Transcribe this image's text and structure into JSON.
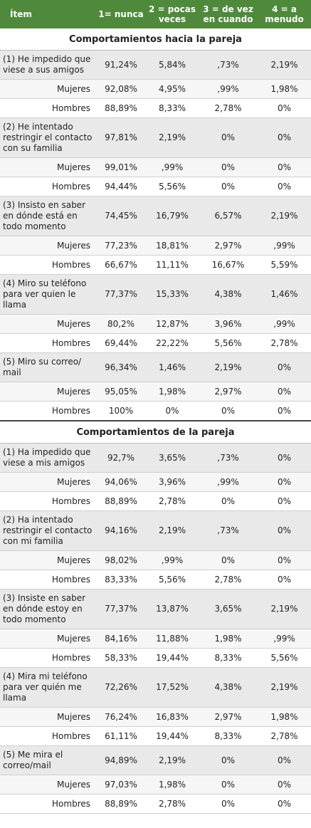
{
  "table": {
    "header": [
      "Ítem",
      "1= nunca",
      "2 = pocas veces",
      "3 = de vez en cuando",
      "4 = a menudo"
    ],
    "sections": [
      {
        "title": "Comportamientos hacia la pareja",
        "rows": [
          [
            "(1) He impedido que viese a sus amigos",
            "91,24%",
            "5,84%",
            ",73%",
            "2,19%"
          ],
          [
            "Mujeres",
            "92,08%",
            "4,95%",
            ",99%",
            "1,98%"
          ],
          [
            "Hombres",
            "88,89%",
            "8,33%",
            "2,78%",
            "0%"
          ],
          [
            "(2) He intentado restringir el contacto con su familia",
            "97,81%",
            "2,19%",
            "0%",
            "0%"
          ],
          [
            "Mujeres",
            "99,01%",
            ",99%",
            "0%",
            "0%"
          ],
          [
            "Hombres",
            "94,44%",
            "5,56%",
            "0%",
            "0%"
          ],
          [
            "(3) Insisto en saber en dónde está en todo momento",
            "74,45%",
            "16,79%",
            "6,57%",
            "2,19%"
          ],
          [
            "Mujeres",
            "77,23%",
            "18,81%",
            "2,97%",
            ",99%"
          ],
          [
            "Hombres",
            "66,67%",
            "11,11%",
            "16,67%",
            "5,59%"
          ],
          [
            "(4) Miro su teléfono para ver quien le llama",
            "77,37%",
            "15,33%",
            "4,38%",
            "1,46%"
          ],
          [
            "Mujeres",
            "80,2%",
            "12,87%",
            "3,96%",
            ",99%"
          ],
          [
            "Hombres",
            "69,44%",
            "22,22%",
            "5,56%",
            "2,78%"
          ],
          [
            "(5) Miro su correo/ mail",
            "96,34%",
            "1,46%",
            "2,19%",
            "0%"
          ],
          [
            "Mujeres",
            "95,05%",
            "1,98%",
            "2,97%",
            "0%"
          ],
          [
            "Hombres",
            "100%",
            "0%",
            "0%",
            "0%"
          ]
        ]
      },
      {
        "title": "Comportamientos de la pareja",
        "rows": [
          [
            "(1) Ha impedido que viese a mis amigos",
            "92,7%",
            "3,65%",
            ",73%",
            "0%"
          ],
          [
            "Mujeres",
            "94,06%",
            "3,96%",
            ",99%",
            "0%"
          ],
          [
            "Hombres",
            "88,89%",
            "2,78%",
            "0%",
            "0%"
          ],
          [
            "(2) Ha intentado restringir el contacto con mi familia",
            "94,16%",
            "2,19%",
            ",73%",
            "0%"
          ],
          [
            "Mujeres",
            "98,02%",
            ",99%",
            "0%",
            "0%"
          ],
          [
            "Hombres",
            "83,33%",
            "5,56%",
            "2,78%",
            "0%"
          ],
          [
            "(3) Insiste en saber en dónde estoy en todo momento",
            "77,37%",
            "13,87%",
            "3,65%",
            "2,19%"
          ],
          [
            "Mujeres",
            "84,16%",
            "11,88%",
            "1,98%",
            ",99%"
          ],
          [
            "Hombres",
            "58,33%",
            "19,44%",
            "8,33%",
            "5,56%"
          ],
          [
            "(4) Mira mi teléfono para ver quién me llama",
            "72,26%",
            "17,52%",
            "4,38%",
            "2,19%"
          ],
          [
            "Mujeres",
            "76,24%",
            "16,83%",
            "2,97%",
            "1,98%"
          ],
          [
            "Hombres",
            "61,11%",
            "19,44%",
            "8,33%",
            "2,78%"
          ],
          [
            "(5) Me mira el correo/mail",
            "94,89%",
            "2,19%",
            "0%",
            "0%"
          ],
          [
            "Mujeres",
            "97,03%",
            "1,98%",
            "0%",
            "0%"
          ],
          [
            "Hombres",
            "88,89%",
            "2,78%",
            "0%",
            "0%"
          ]
        ]
      }
    ]
  }
}
